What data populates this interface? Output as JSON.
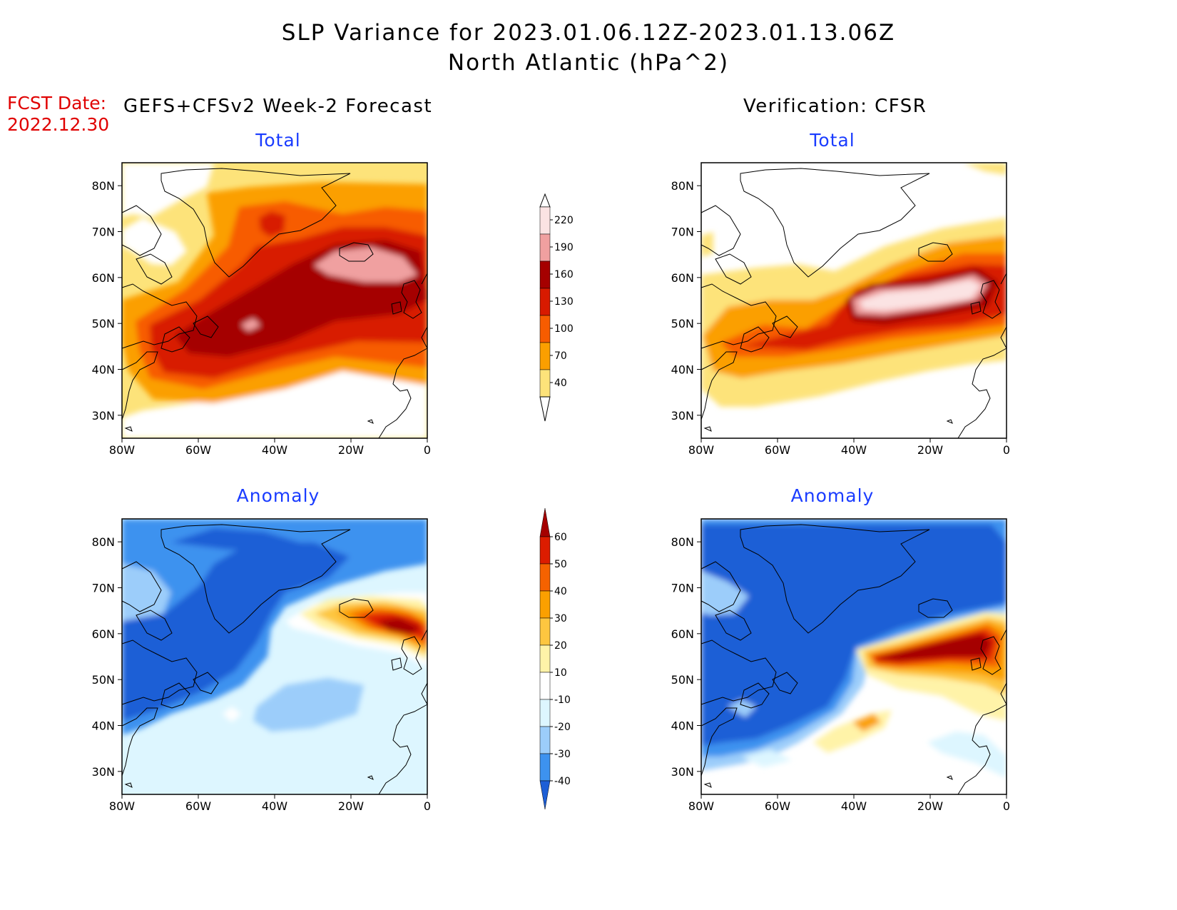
{
  "title": {
    "line1": "SLP Variance for 2023.01.06.12Z-2023.01.13.06Z",
    "line2": "North Atlantic (hPa^2)"
  },
  "fcst": {
    "label": "FCST Date:",
    "date": "2022.12.30"
  },
  "headers": {
    "left": "GEFS+CFSv2 Week-2 Forecast",
    "right": "Verification: CFSR"
  },
  "panel_titles": {
    "tl": "Total",
    "tr": "Total",
    "bl": "Anomaly",
    "br": "Anomaly"
  },
  "axes": {
    "lat_labels": [
      "80N",
      "70N",
      "60N",
      "50N",
      "40N",
      "30N"
    ],
    "lon_labels": [
      "80W",
      "60W",
      "40W",
      "20W",
      "0"
    ],
    "lat_range": [
      25,
      85
    ],
    "lon_range": [
      -80,
      0
    ]
  },
  "total_colorbar": {
    "labels": [
      "220",
      "190",
      "160",
      "130",
      "100",
      "70",
      "40"
    ],
    "colors": [
      "#fbe3e3",
      "#f0a0a0",
      "#a50000",
      "#d81a00",
      "#f75c00",
      "#fb9f00",
      "#fde37a"
    ]
  },
  "anomaly_colorbar": {
    "labels": [
      "60",
      "50",
      "40",
      "30",
      "20",
      "10",
      "-10",
      "-20",
      "-30",
      "-40"
    ],
    "colors": [
      "#a50000",
      "#dc1c00",
      "#f56200",
      "#fba000",
      "#fdc640",
      "#fff3a8",
      "#ffffff",
      "#ddf6ff",
      "#9ccdfa",
      "#3d92ef",
      "#1e5fd6"
    ]
  }
}
